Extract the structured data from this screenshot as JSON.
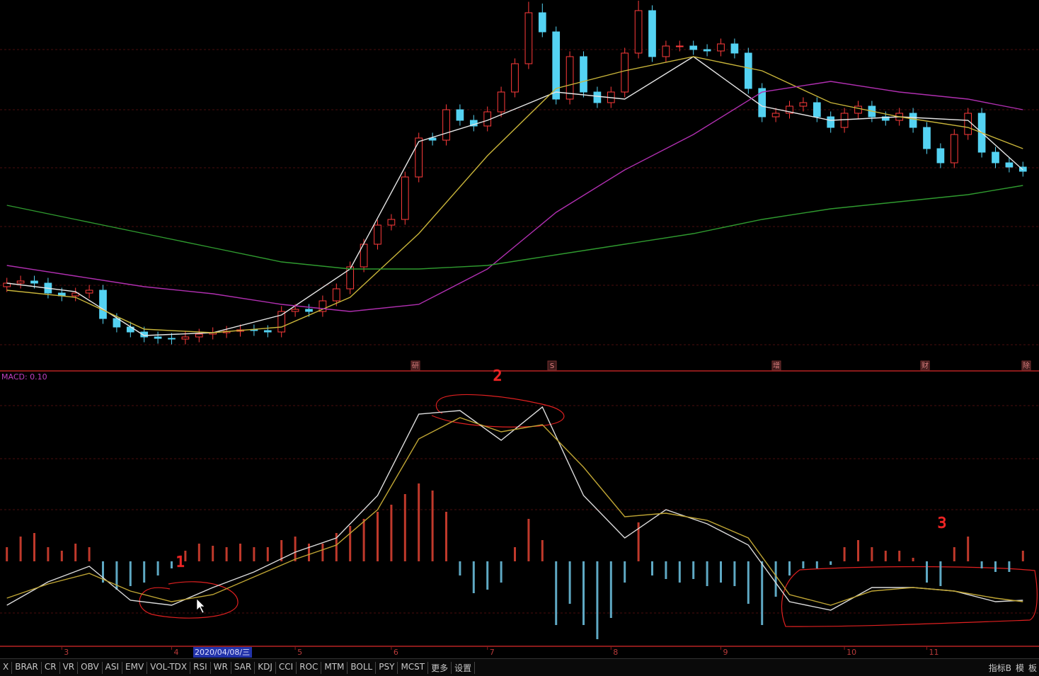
{
  "chart_data": [
    {
      "type": "candlestick",
      "xlim": [
        -0.5,
        74.5
      ],
      "ylim": [
        0,
        100
      ],
      "up_color": "#ff3b3b",
      "down_color": "#54d2f2",
      "open": [
        19,
        20,
        20.6,
        20,
        17.2,
        16.4,
        17.2,
        18,
        10,
        7.6,
        6.2,
        4.8,
        4.4,
        4.2,
        4.8,
        5.6,
        6,
        6.4,
        6.8,
        6.6,
        6.2,
        12,
        12.6,
        12,
        15,
        18.4,
        24.6,
        31,
        36.4,
        38,
        50,
        61,
        60.4,
        69,
        66,
        64.4,
        68.4,
        74,
        82,
        96.4,
        91,
        72,
        84,
        74,
        71,
        74,
        85,
        97,
        84,
        87,
        87,
        86,
        85.6,
        87.6,
        85,
        75,
        67,
        68,
        70,
        71,
        67,
        64,
        68,
        70,
        67,
        66,
        68,
        64,
        58,
        54,
        62,
        68,
        57,
        54,
        52.8
      ],
      "close": [
        20,
        20.6,
        20,
        17.2,
        16.4,
        17.2,
        18,
        10,
        7.6,
        6.2,
        4.8,
        4.4,
        4.2,
        4.8,
        5.6,
        6,
        6.4,
        6.8,
        6.6,
        6.2,
        12,
        12.6,
        12,
        15,
        18.4,
        24.6,
        31,
        36.4,
        38,
        50,
        61,
        60.4,
        69,
        66,
        64.4,
        68.4,
        74,
        82,
        96.4,
        91,
        72,
        84,
        74,
        71,
        74,
        85,
        97,
        84,
        87,
        87,
        86,
        85.6,
        87.6,
        85,
        75,
        67,
        68,
        70,
        71,
        67,
        64,
        68,
        70,
        67,
        66,
        68,
        64,
        58,
        54,
        62,
        68,
        57,
        54,
        52.8,
        51.6
      ],
      "high": [
        21.5,
        22.1,
        22.1,
        21.5,
        18.7,
        18.7,
        19.5,
        19.5,
        11.5,
        9.1,
        7.7,
        6.3,
        5.9,
        6.3,
        7.1,
        7.5,
        7.9,
        8.3,
        8.3,
        8.1,
        13.5,
        14.1,
        14.1,
        16.5,
        19.9,
        26.1,
        32.5,
        37.9,
        39.5,
        51.5,
        62.5,
        62.5,
        70.5,
        70.5,
        67.5,
        69.9,
        75.5,
        83.5,
        99.5,
        99,
        92.5,
        85.5,
        85.5,
        75.5,
        75.5,
        86.5,
        99.8,
        98.5,
        88.5,
        88.5,
        88.5,
        87.5,
        89.1,
        89.1,
        86.5,
        76.5,
        69.5,
        71.5,
        72.5,
        72.5,
        68.5,
        69.5,
        71.5,
        71.5,
        68.5,
        69.5,
        69.5,
        65.5,
        59.5,
        63.5,
        69.5,
        69.5,
        58.5,
        55.5,
        54.3
      ],
      "low": [
        17.5,
        18.5,
        18.5,
        15.7,
        14.9,
        14.9,
        15.7,
        8.5,
        6.1,
        4.7,
        3.3,
        2.9,
        2.7,
        2.7,
        3.3,
        4.1,
        4.5,
        4.9,
        5.1,
        4.7,
        4.7,
        10.5,
        10.5,
        10.5,
        13.5,
        16.9,
        23.1,
        29.5,
        34.9,
        36.5,
        48.5,
        58.9,
        58.9,
        64.5,
        62.9,
        62.9,
        66.9,
        72.5,
        80.5,
        89.5,
        70.5,
        70.5,
        72.5,
        69.5,
        69.5,
        72.5,
        83.5,
        82.5,
        82.5,
        85.5,
        84.5,
        84.1,
        84.1,
        83.5,
        73.5,
        65.5,
        65.5,
        66.5,
        68.5,
        65.5,
        62.5,
        62.5,
        66.5,
        65.5,
        64.5,
        64.5,
        62.5,
        56.5,
        52.5,
        52.5,
        60.5,
        55.5,
        52.5,
        51.3,
        50.1
      ],
      "series": [
        {
          "color": "#e6e6e6",
          "x": [
            0,
            5,
            10,
            15,
            20,
            25,
            30,
            35,
            40,
            45,
            50,
            55,
            60,
            65,
            70,
            74
          ],
          "values": [
            20,
            17.6,
            5.2,
            6,
            11,
            24,
            60,
            66,
            74,
            72,
            84,
            70,
            66,
            67,
            66,
            52
          ]
        },
        {
          "color": "#c9b53a",
          "x": [
            0,
            5,
            10,
            15,
            20,
            25,
            30,
            35,
            40,
            45,
            50,
            55,
            60,
            65,
            70,
            74
          ],
          "values": [
            18,
            16,
            7,
            6,
            7.6,
            16,
            34,
            56,
            75,
            80,
            84,
            80,
            71,
            67,
            64,
            58
          ]
        },
        {
          "color": "#b02fb0",
          "x": [
            0,
            5,
            10,
            15,
            20,
            25,
            30,
            35,
            40,
            45,
            50,
            55,
            60,
            65,
            70,
            74
          ],
          "values": [
            25,
            22,
            19,
            17,
            14,
            12,
            14,
            24,
            40,
            52,
            62,
            74,
            77,
            74,
            72,
            69
          ]
        },
        {
          "color": "#2f9a2f",
          "x": [
            0,
            5,
            10,
            15,
            20,
            25,
            30,
            35,
            40,
            45,
            50,
            55,
            60,
            65,
            70,
            74
          ],
          "values": [
            42,
            38,
            34,
            30,
            26,
            24,
            24,
            25,
            28,
            31,
            34,
            38,
            41,
            43,
            45,
            47.6
          ]
        }
      ],
      "event_markers": [
        "研",
        "S",
        "增",
        "财",
        "除"
      ]
    },
    {
      "type": "macd",
      "title": "MACD: 0.10",
      "xlim": [
        -0.5,
        74.5
      ],
      "ylim": [
        -1.2,
        2.7
      ],
      "up_color": "#c0392b",
      "down_color": "#5fa9c4",
      "values": [
        0.2,
        0.35,
        0.4,
        0.2,
        0.15,
        0.25,
        0.2,
        -0.3,
        -0.4,
        -0.35,
        -0.3,
        -0.2,
        -0.1,
        0.15,
        0.25,
        0.22,
        0.2,
        0.25,
        0.2,
        0.2,
        0.3,
        0.35,
        0.25,
        0.25,
        0.4,
        0.5,
        0.6,
        0.7,
        0.8,
        0.95,
        1.1,
        1.0,
        0.7,
        -0.2,
        -0.45,
        -0.4,
        -0.3,
        0.2,
        0.6,
        0.3,
        -0.9,
        -0.6,
        -0.9,
        -1.1,
        -0.8,
        -0.3,
        0.55,
        -0.2,
        -0.25,
        -0.3,
        -0.25,
        -0.35,
        -0.3,
        -0.35,
        -0.6,
        -0.9,
        -0.5,
        -0.2,
        -0.1,
        -0.1,
        -0.05,
        0.2,
        0.3,
        0.2,
        0.15,
        0.15,
        0.05,
        -0.3,
        -0.35,
        0.2,
        0.35,
        -0.1,
        -0.15,
        -0.15,
        0.15
      ],
      "series": [
        {
          "color": "#dcdcdc",
          "x": [
            0,
            3,
            6,
            9,
            12,
            15,
            18,
            21,
            24,
            27,
            30,
            33,
            36,
            39,
            42,
            45,
            48,
            51,
            54,
            57,
            60,
            63,
            66,
            69,
            72,
            74
          ],
          "values": [
            -0.62,
            -0.29,
            -0.07,
            -0.55,
            -0.62,
            -0.37,
            -0.15,
            0.13,
            0.33,
            0.93,
            2.08,
            2.13,
            1.71,
            2.18,
            0.93,
            0.33,
            0.73,
            0.53,
            0.23,
            -0.57,
            -0.69,
            -0.37,
            -0.37,
            -0.42,
            -0.57,
            -0.55
          ]
        },
        {
          "color": "#bfa534",
          "x": [
            0,
            3,
            6,
            9,
            12,
            15,
            18,
            21,
            24,
            27,
            30,
            33,
            36,
            39,
            42,
            45,
            48,
            51,
            54,
            57,
            60,
            63,
            66,
            69,
            72,
            74
          ],
          "values": [
            -0.52,
            -0.32,
            -0.17,
            -0.42,
            -0.57,
            -0.47,
            -0.22,
            0.03,
            0.23,
            0.73,
            1.73,
            2.03,
            1.83,
            1.93,
            1.33,
            0.63,
            0.68,
            0.58,
            0.33,
            -0.47,
            -0.62,
            -0.42,
            -0.37,
            -0.42,
            -0.52,
            -0.57
          ]
        }
      ],
      "xticks": [
        {
          "value": 4,
          "label": "3"
        },
        {
          "value": 12,
          "label": "4"
        },
        {
          "value": 21,
          "label": "5"
        },
        {
          "value": 28,
          "label": "6"
        },
        {
          "value": 35,
          "label": "7"
        },
        {
          "value": 44,
          "label": "8"
        },
        {
          "value": 52,
          "label": "9"
        },
        {
          "value": 61,
          "label": "10"
        },
        {
          "value": 67,
          "label": "11"
        }
      ],
      "cursor_label": "2020/04/08/三",
      "annotations": [
        "1",
        "2",
        "3"
      ]
    }
  ],
  "toolbar": {
    "tabs": [
      "X",
      "BRAR",
      "CR",
      "VR",
      "OBV",
      "ASI",
      "EMV",
      "VOL-TDX",
      "RSI",
      "WR",
      "SAR",
      "KDJ",
      "CCI",
      "ROC",
      "MTM",
      "BOLL",
      "PSY",
      "MCST",
      "更多",
      "设置"
    ],
    "right": [
      "指标B",
      "模",
      "板"
    ]
  }
}
